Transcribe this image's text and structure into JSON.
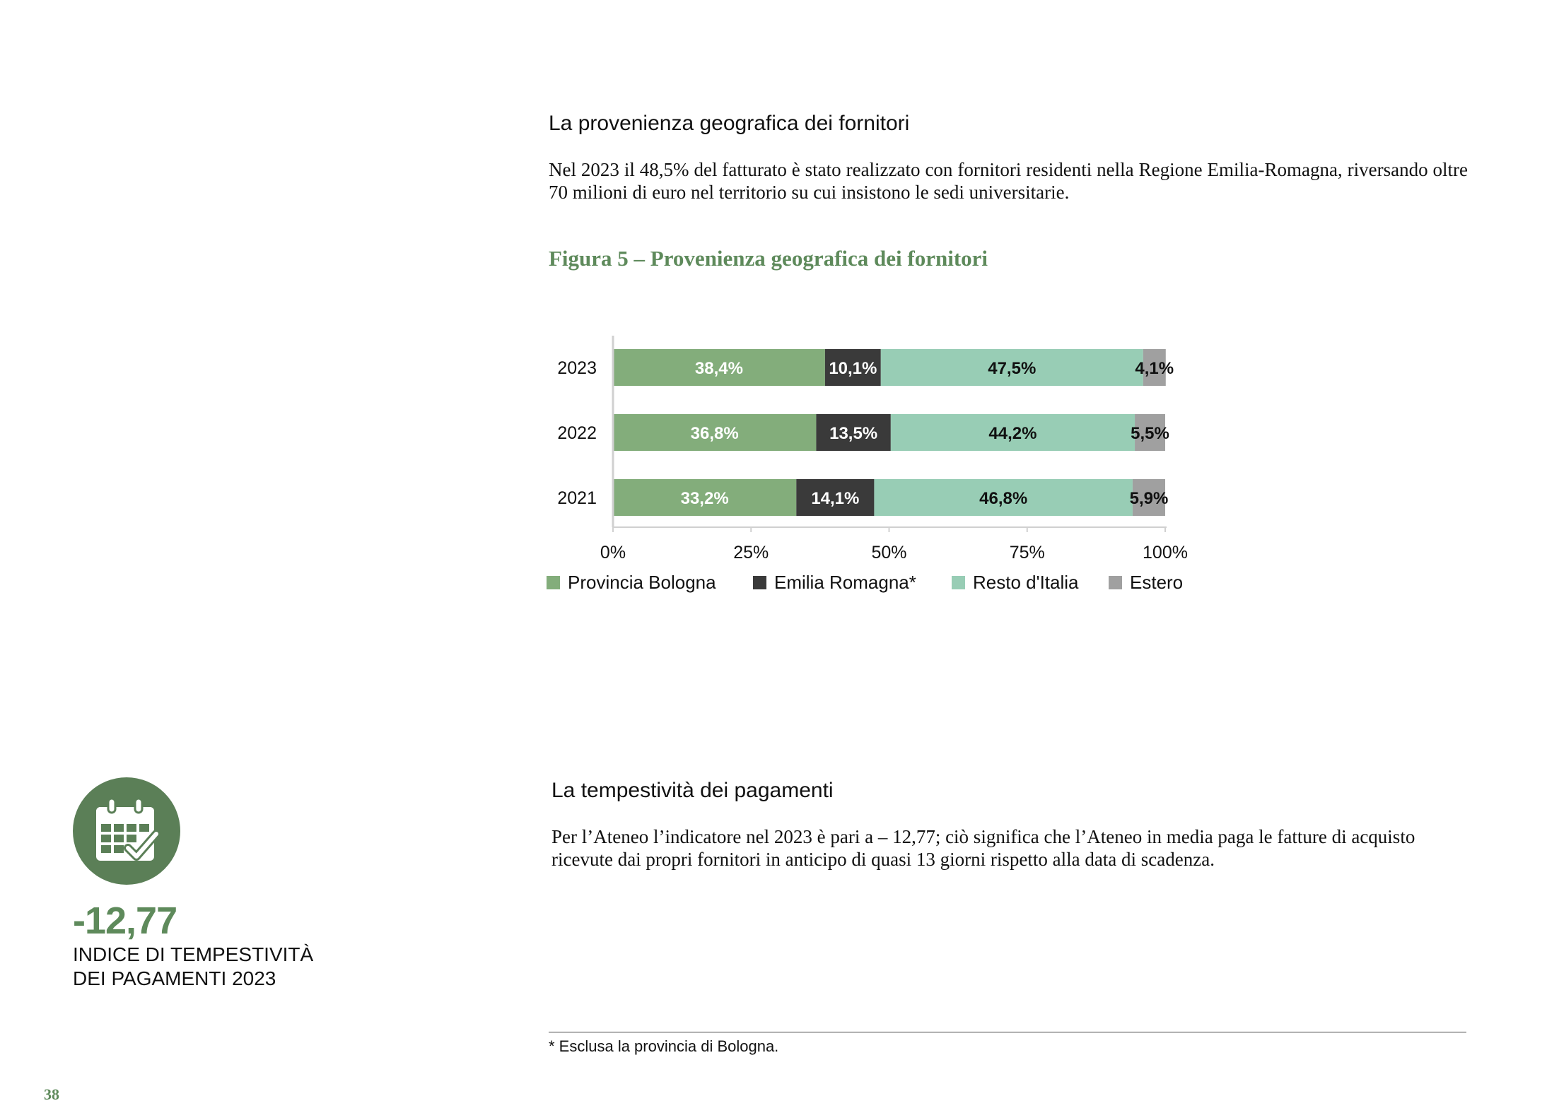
{
  "section1": {
    "heading": "La provenienza geografica dei fornitori",
    "body": "Nel 2023 il 48,5% del fatturato è stato realizzato con fornitori residenti nella Regione Emilia-Romagna, riversando oltre 70 milioni di euro nel territorio su cui insistono le sedi universitarie."
  },
  "figure": {
    "title": "Figura 5 – Provenienza geografica dei fornitori"
  },
  "chart_data": {
    "type": "bar",
    "orientation": "horizontal",
    "stacked": true,
    "categories": [
      "2023",
      "2022",
      "2021"
    ],
    "series": [
      {
        "name": "Provincia Bologna",
        "values": [
          38.4,
          36.8,
          33.2
        ],
        "labels": [
          "38,4%",
          "36,8%",
          "33,2%"
        ],
        "color": "#83ad7b",
        "label_color": "#ffffff"
      },
      {
        "name": "Emilia Romagna*",
        "values": [
          10.1,
          13.5,
          14.1
        ],
        "labels": [
          "10,1%",
          "13,5%",
          "14,1%"
        ],
        "color": "#3a3a3a",
        "label_color": "#ffffff"
      },
      {
        "name": "Resto d'Italia",
        "values": [
          47.5,
          44.2,
          46.8
        ],
        "labels": [
          "47,5%",
          "44,2%",
          "46,8%"
        ],
        "color": "#98cdb5",
        "label_color": "#111111"
      },
      {
        "name": "Estero",
        "values": [
          4.1,
          5.5,
          5.9
        ],
        "labels": [
          "4,1%",
          "5,5%",
          "5,9%"
        ],
        "color": "#a0a0a0",
        "label_color": "#111111"
      }
    ],
    "x_ticks": [
      "0%",
      "25%",
      "50%",
      "75%",
      "100%"
    ],
    "xlim": [
      0,
      100
    ],
    "grid": false,
    "legend_position": "bottom"
  },
  "section2": {
    "heading": "La tempestività dei pagamenti",
    "body": "Per l’Ateneo l’indicatore nel 2023 è pari a – 12,77; ciò significa che l’Ateneo in media paga le fatture di acquisto ricevute dai propri fornitori in anticipo di quasi 13 giorni rispetto alla data di scadenza."
  },
  "kpi": {
    "icon": "calendar-check-icon",
    "value": "-12,77",
    "label_line1": "INDICE DI TEMPESTIVITÀ",
    "label_line2": "DEI PAGAMENTI 2023"
  },
  "footnote": "* Esclusa la provincia di Bologna.",
  "page_number": "38",
  "colors": {
    "accent_green": "#5e8a5b",
    "badge_green": "#5b7f57"
  }
}
